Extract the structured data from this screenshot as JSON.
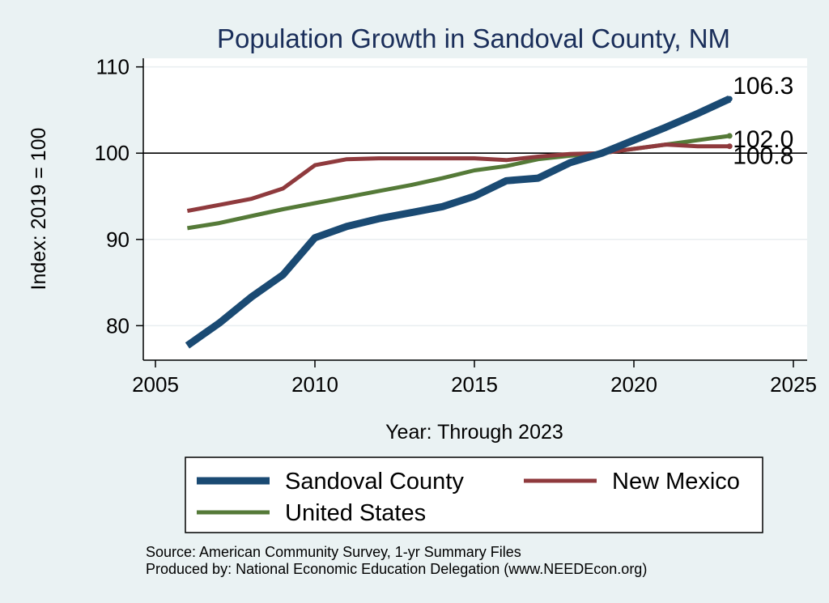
{
  "chart_data": {
    "type": "line",
    "title": "Population Growth in Sandoval County, NM",
    "xlabel": "Year: Through 2023",
    "ylabel": "Index: 2019 = 100",
    "xlim": [
      2005,
      2025
    ],
    "ylim": [
      76,
      111
    ],
    "xticks": [
      2005,
      2010,
      2015,
      2020,
      2025
    ],
    "yticks": [
      80,
      90,
      100,
      110
    ],
    "reference_line": 100,
    "grid": true,
    "legend_position": "bottom",
    "series": [
      {
        "name": "Sandoval  County",
        "color": "#1a4a73",
        "width": 9,
        "x": [
          2006,
          2007,
          2008,
          2009,
          2010,
          2011,
          2012,
          2013,
          2014,
          2015,
          2016,
          2017,
          2018,
          2019,
          2020,
          2021,
          2022,
          2023
        ],
        "y": [
          77.7,
          80.3,
          83.3,
          85.9,
          90.2,
          91.5,
          92.4,
          93.1,
          93.8,
          95.0,
          96.8,
          97.1,
          98.9,
          100.0,
          101.5,
          103.0,
          104.6,
          106.3
        ],
        "end_label": "106.3"
      },
      {
        "name": "New Mexico",
        "color": "#8f3a3d",
        "width": 5,
        "x": [
          2006,
          2007,
          2008,
          2009,
          2010,
          2011,
          2012,
          2013,
          2014,
          2015,
          2016,
          2017,
          2018,
          2019,
          2020,
          2021,
          2022,
          2023
        ],
        "y": [
          93.3,
          94.0,
          94.7,
          95.9,
          98.6,
          99.3,
          99.4,
          99.4,
          99.4,
          99.4,
          99.2,
          99.6,
          99.9,
          100.0,
          100.5,
          101.0,
          100.8,
          100.8
        ],
        "end_label": "100.8"
      },
      {
        "name": "United States",
        "color": "#557a38",
        "width": 5,
        "x": [
          2006,
          2007,
          2008,
          2009,
          2010,
          2011,
          2012,
          2013,
          2014,
          2015,
          2016,
          2017,
          2018,
          2019,
          2020,
          2021,
          2022,
          2023
        ],
        "y": [
          91.3,
          91.9,
          92.7,
          93.5,
          94.2,
          94.9,
          95.6,
          96.3,
          97.1,
          98.0,
          98.5,
          99.3,
          99.7,
          100.0,
          100.5,
          101.0,
          101.5,
          102.0
        ],
        "end_label": "102.0"
      }
    ],
    "source_lines": [
      "Source: American Community Survey, 1-yr Summary Files",
      "Produced by: National Economic Education Delegation (www.NEEDEcon.org)"
    ]
  }
}
